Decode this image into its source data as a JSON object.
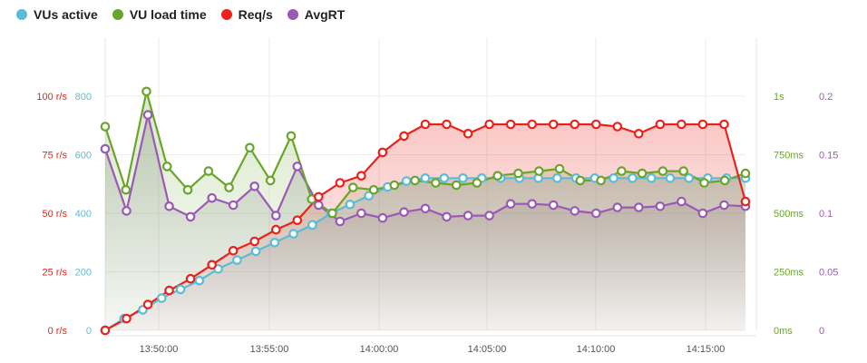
{
  "chart_data": {
    "type": "line",
    "legend_position": "top-left",
    "grid": true,
    "colors": {
      "vus": "#5bbcd6",
      "vu_load_time": "#6aa52b",
      "reqs": "#e8231b",
      "avgrt": "#9b59b6"
    },
    "legend": [
      {
        "name": "VUs active",
        "color": "#5bbcd6"
      },
      {
        "name": "VU load time",
        "color": "#6aa52b"
      },
      {
        "name": "Req/s",
        "color": "#e8231b"
      },
      {
        "name": "AvgRT",
        "color": "#9b59b6"
      }
    ],
    "x_ticks": [
      "13:50:00",
      "13:55:00",
      "14:00:00",
      "14:05:00",
      "14:10:00",
      "14:15:00"
    ],
    "axes": {
      "reqs": {
        "ticks": [
          "0 r/s",
          "25 r/s",
          "50 r/s",
          "75 r/s",
          "100 r/s"
        ],
        "range": [
          0,
          100
        ]
      },
      "vus": {
        "ticks": [
          "0",
          "200",
          "400",
          "600",
          "800"
        ],
        "range": [
          0,
          800
        ]
      },
      "vu_load_time": {
        "ticks": [
          "0ms",
          "250ms",
          "500ms",
          "750ms",
          "1s"
        ],
        "range": [
          0,
          1000
        ]
      },
      "avgrt": {
        "ticks": [
          "0",
          "0.05",
          "0.1",
          "0.15",
          "0.2"
        ],
        "range": [
          0,
          0.2
        ]
      }
    },
    "series": {
      "vus": [
        0,
        40,
        70,
        110,
        140,
        170,
        210,
        240,
        270,
        300,
        330,
        360,
        400,
        430,
        460,
        490,
        510,
        520,
        520,
        520,
        520,
        520,
        520,
        520,
        520,
        520,
        520,
        520,
        520,
        520,
        520,
        520,
        520,
        520,
        520
      ],
      "vu_load_time": [
        870,
        600,
        1020,
        700,
        600,
        680,
        610,
        780,
        640,
        830,
        560,
        500,
        610,
        600,
        620,
        640,
        630,
        620,
        630,
        660,
        670,
        680,
        690,
        640,
        640,
        680,
        670,
        680,
        680,
        630,
        640,
        670
      ],
      "reqs": [
        0,
        5,
        11,
        17,
        22,
        28,
        34,
        38,
        43,
        47,
        57,
        63,
        66,
        76,
        83,
        88,
        88,
        84,
        88,
        88,
        88,
        88,
        88,
        88,
        87,
        84,
        88,
        88,
        88,
        88,
        55
      ],
      "avgrt": [
        0.155,
        0.102,
        0.184,
        0.106,
        0.097,
        0.113,
        0.107,
        0.123,
        0.098,
        0.14,
        0.107,
        0.093,
        0.1,
        0.096,
        0.101,
        0.104,
        0.097,
        0.098,
        0.098,
        0.108,
        0.108,
        0.107,
        0.102,
        0.1,
        0.105,
        0.105,
        0.106,
        0.11,
        0.1,
        0.107,
        0.106
      ]
    }
  }
}
